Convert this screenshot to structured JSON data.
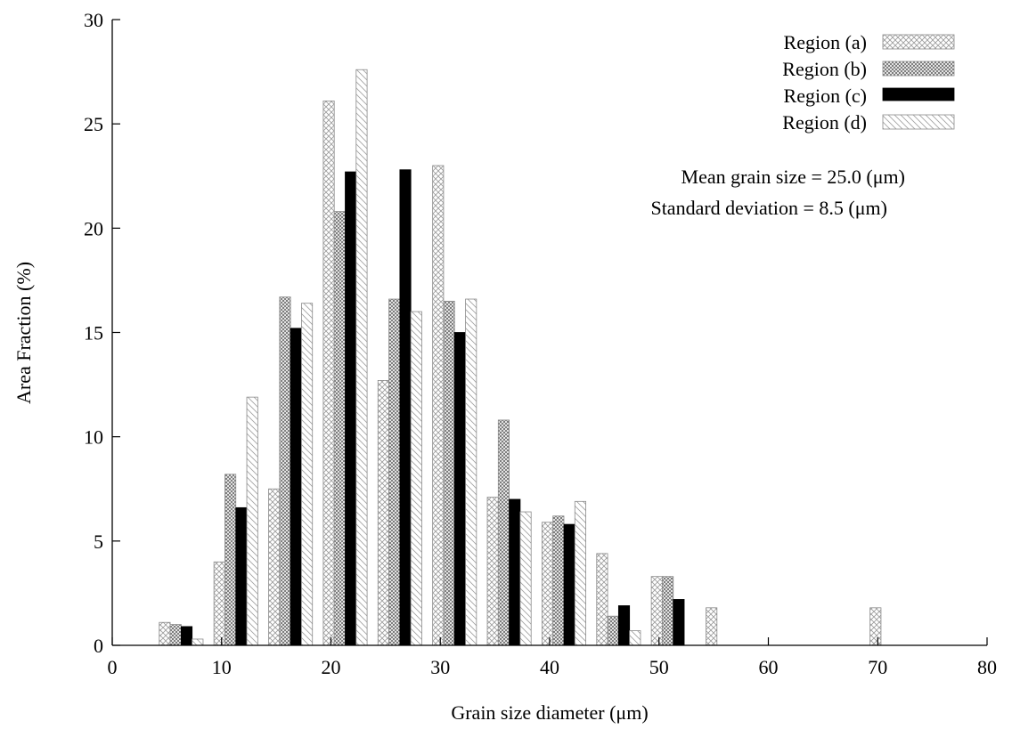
{
  "chart_data": {
    "type": "bar",
    "xlabel": "Grain size diameter  (μm)",
    "ylabel": "Area Fraction (%)",
    "xlim": [
      0,
      80
    ],
    "ylim": [
      0,
      30
    ],
    "xticks": [
      0,
      10,
      20,
      30,
      40,
      50,
      60,
      70,
      80
    ],
    "yticks": [
      0,
      5,
      10,
      15,
      20,
      25,
      30
    ],
    "grid": false,
    "legend_position": "top-right",
    "annotations": [
      "Mean grain size = 25.0 (μm)",
      "Standard deviation = 8.5 (μm)"
    ],
    "categories": [
      5,
      10,
      15,
      20,
      25,
      30,
      35,
      40,
      45,
      50,
      55,
      60,
      65,
      70
    ],
    "series": [
      {
        "name": "Region (a)",
        "pattern": "crosshatch-light",
        "values": [
          1.1,
          4.0,
          7.5,
          26.1,
          12.7,
          23.0,
          7.1,
          5.9,
          4.4,
          3.3,
          1.8,
          0,
          0,
          1.8
        ]
      },
      {
        "name": "Region (b)",
        "pattern": "crosshatch-dense",
        "values": [
          1.0,
          8.2,
          16.7,
          20.8,
          16.6,
          16.5,
          10.8,
          6.2,
          1.4,
          3.3,
          0,
          0,
          0,
          0
        ]
      },
      {
        "name": "Region (c)",
        "pattern": "solid-black",
        "values": [
          0.9,
          6.6,
          15.2,
          22.7,
          22.8,
          15.0,
          7.0,
          5.8,
          1.9,
          2.2,
          0,
          0,
          0,
          0
        ]
      },
      {
        "name": "Region (d)",
        "pattern": "diagonal-light",
        "values": [
          0.3,
          11.9,
          16.4,
          27.6,
          16.0,
          16.6,
          6.4,
          6.9,
          0.7,
          0,
          0,
          0,
          0,
          0
        ]
      }
    ]
  }
}
